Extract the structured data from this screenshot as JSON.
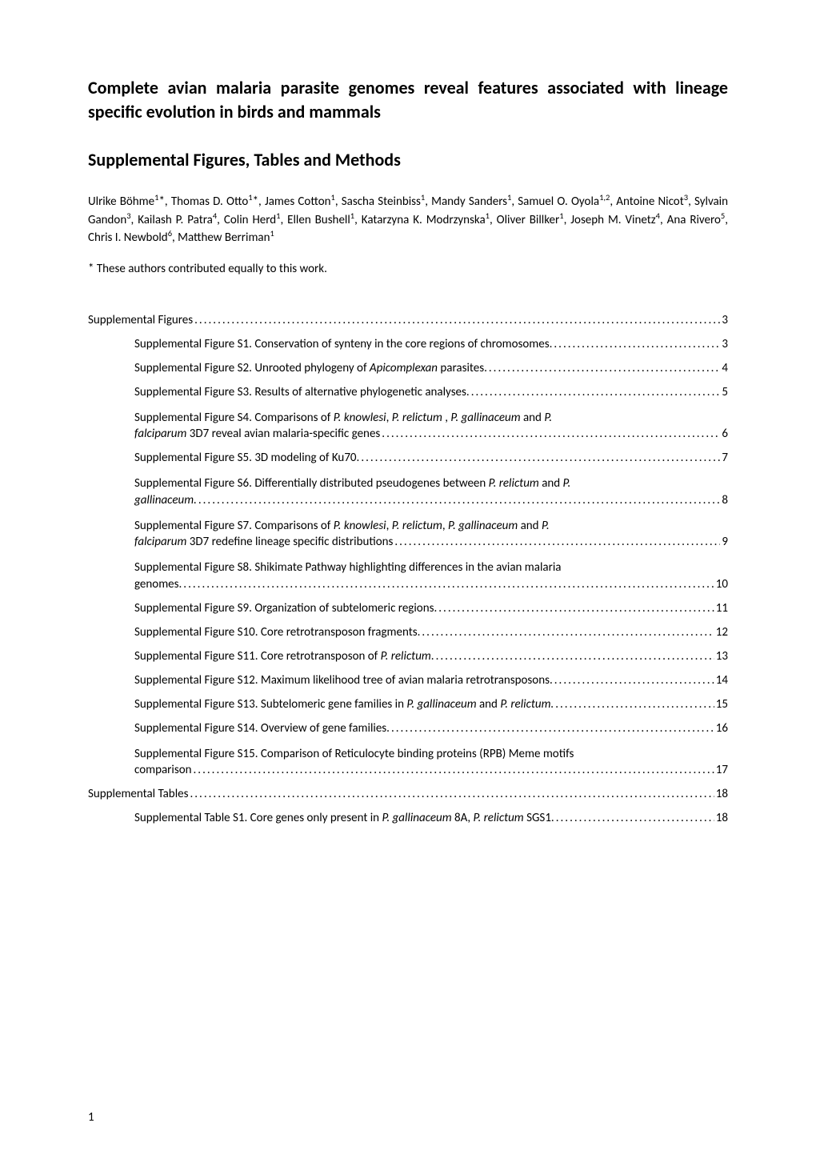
{
  "colors": {
    "text": "#000000",
    "background": "#ffffff"
  },
  "typography": {
    "body_font": "Calibri",
    "title_fontsize_pt": 14,
    "title_fontweight": 700,
    "heading_fontsize_pt": 14,
    "heading_fontweight": 700,
    "body_fontsize_pt": 11,
    "toc_fontsize_pt": 11
  },
  "title": "Complete avian malaria parasite genomes reveal features associated with lineage specific evolution in birds and mammals",
  "section_heading": "Supplemental Figures, Tables and Methods",
  "authors_html": "Ulrike Böhme<sup>1</sup>*, Thomas D. Otto<sup>1</sup>*, James Cotton<sup>1</sup>, Sascha Steinbiss<sup>1</sup>, Mandy Sanders<sup>1</sup>, Samuel O. Oyola<sup>1,2</sup>, Antoine Nicot<sup>3</sup>, Sylvain Gandon<sup>3</sup>, Kailash P. Patra<sup>4</sup>, Colin Herd<sup>1</sup>, Ellen Bushell<sup>1</sup>, Katarzyna K. Modrzynska<sup>1</sup>, Oliver Billker<sup>1</sup>, Joseph M. Vinetz<sup>4</sup>, Ana Rivero<sup>5</sup>, Chris I. Newbold<sup>6</sup>, Matthew Berriman<sup>1</sup>",
  "equal_contribution": "* These authors contributed equally to this work.",
  "toc": [
    {
      "level": 0,
      "text": "Supplemental Figures",
      "page": "3",
      "multiline": false
    },
    {
      "level": 1,
      "text": "Supplemental Figure S1. Conservation of synteny in the core regions of chromosomes.",
      "page": "3",
      "multiline": false
    },
    {
      "level": 1,
      "text_html": "Supplemental Figure S2. Unrooted phylogeny of <span class=\"italic\">Apicomplexan</span> parasites.",
      "page": "4",
      "multiline": false
    },
    {
      "level": 1,
      "text": "Supplemental Figure S3. Results of alternative phylogenetic analyses.",
      "page": "5",
      "multiline": false
    },
    {
      "level": 1,
      "multiline": true,
      "wrap_html": "Supplemental Figure S4. Comparisons of <span class=\"italic\">P. knowlesi</span>, <span class=\"italic\">P. relictum</span> , <span class=\"italic\">P. gallinaceum</span> and <span class=\"italic\">P.</span>",
      "last_html": "<span class=\"italic\">falciparum</span> 3D7 reveal avian malaria-specific genes",
      "page": "6"
    },
    {
      "level": 1,
      "text": "Supplemental Figure S5. 3D modeling of Ku70.",
      "page": "7",
      "multiline": false
    },
    {
      "level": 1,
      "multiline": true,
      "wrap_html": "Supplemental Figure S6. Differentially distributed pseudogenes between <span class=\"italic\">P. relictum</span> and <span class=\"italic\">P.</span>",
      "last_html": "<span class=\"italic\">gallinaceum.</span>",
      "page": "8"
    },
    {
      "level": 1,
      "multiline": true,
      "wrap_html": "Supplemental Figure S7. Comparisons of <span class=\"italic\">P. knowlesi</span>, <span class=\"italic\">P. relictum</span>, <span class=\"italic\">P. gallinaceum</span> and <span class=\"italic\">P.</span>",
      "last_html": "<span class=\"italic\">falciparum</span> 3D7 redefine lineage specific distributions",
      "page": "9"
    },
    {
      "level": 1,
      "multiline": true,
      "wrap_html": "Supplemental Figure S8. Shikimate Pathway highlighting differences in the avian malaria",
      "last_html": "genomes.",
      "page": "10"
    },
    {
      "level": 1,
      "text": "Supplemental Figure S9. Organization of subtelomeric regions.",
      "page": "11",
      "multiline": false
    },
    {
      "level": 1,
      "text": "Supplemental Figure S10. Core retrotransposon fragments.",
      "page": "12",
      "multiline": false
    },
    {
      "level": 1,
      "text_html": "Supplemental Figure S11. Core retrotransposon of <span class=\"italic\">P. relictum</span>.",
      "page": "13",
      "multiline": false
    },
    {
      "level": 1,
      "text": "Supplemental Figure S12. Maximum likelihood tree of avian malaria retrotransposons.",
      "page": "14",
      "multiline": false
    },
    {
      "level": 1,
      "text_html": "Supplemental Figure S13. Subtelomeric gene families in <span class=\"italic\">P. gallinaceum</span> and <span class=\"italic\">P. relictum.</span>",
      "page": "15",
      "multiline": false
    },
    {
      "level": 1,
      "text": "Supplemental Figure S14. Overview of gene families.",
      "page": "16",
      "multiline": false
    },
    {
      "level": 1,
      "multiline": true,
      "wrap_html": "Supplemental Figure S15. Comparison of Reticulocyte binding proteins (RPB) Meme motifs",
      "last_html": "comparison",
      "page": "17"
    },
    {
      "level": 0,
      "text": "Supplemental Tables",
      "page": "18",
      "multiline": false
    },
    {
      "level": 1,
      "text_html": "Supplemental Table S1. Core genes only present in <span class=\"italic\">P. gallinaceum</span> 8A, <span class=\"italic\">P. relictum</span> SGS1.",
      "page": "18",
      "multiline": false
    }
  ],
  "page_number": "1"
}
